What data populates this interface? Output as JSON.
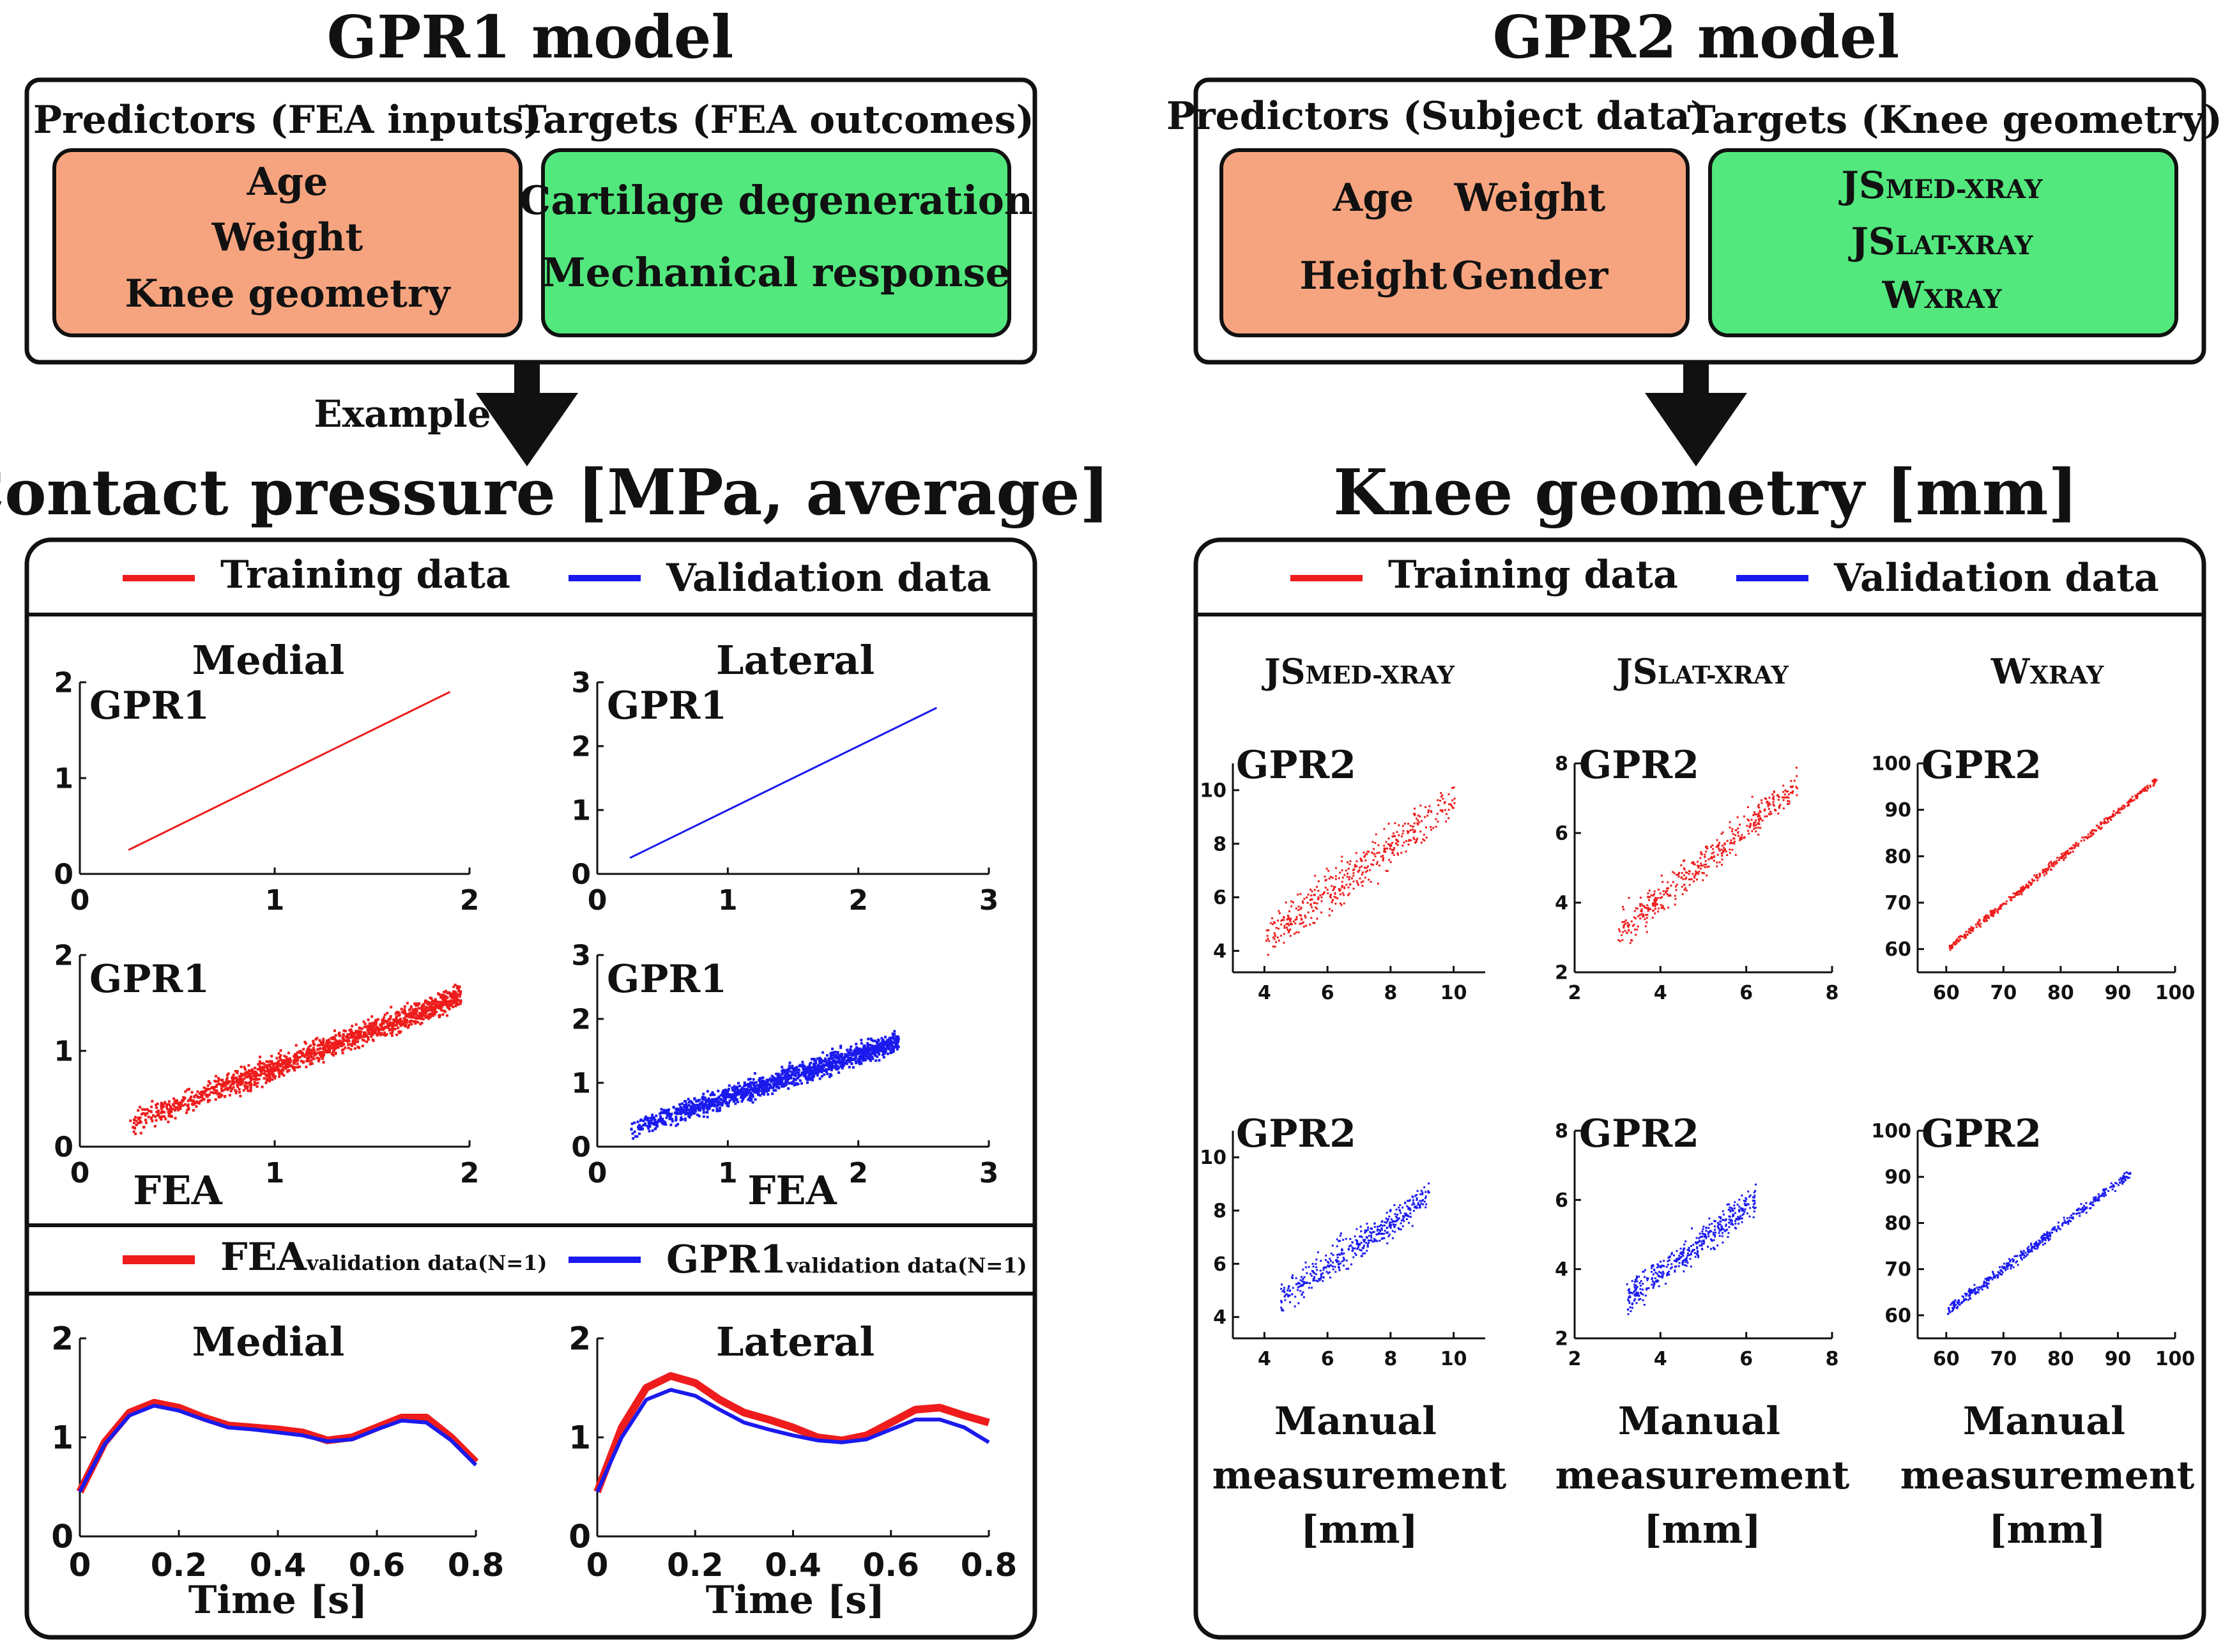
{
  "gpr1": {
    "title": "GPR1 model",
    "predictors_header": "Predictors (FEA inputs)",
    "targets_header": "Targets (FEA outcomes)",
    "predictors": [
      "Age",
      "Weight",
      "Knee geometry"
    ],
    "targets": [
      "Cartilage degeneration",
      "Mechanical response"
    ],
    "example_label": "Example",
    "section_title": "Contact pressure [MPa, average]",
    "legend_training": "Training data",
    "legend_validation": "Validation data",
    "medial_label": "Medial",
    "lateral_label": "Lateral",
    "gpr_label": "GPR1",
    "fea_label": "FEA",
    "ts_legend_fea": "FEA",
    "ts_legend_fea_sub": "validation data(N=1)",
    "ts_legend_gpr": "GPR1",
    "ts_legend_gpr_sub": "validation data(N=1)",
    "time_label": "Time [s]"
  },
  "gpr2": {
    "title": "GPR2 model",
    "predictors_header": "Predictors (Subject data)",
    "targets_header": "Targets (Knee geometry)",
    "predictors": [
      "Age",
      "Weight",
      "Height",
      "Gender"
    ],
    "targets": [
      {
        "main": "JS",
        "sub": "MED-XRAY"
      },
      {
        "main": "JS",
        "sub": "LAT-XRAY"
      },
      {
        "main": "W",
        "sub": "XRAY"
      }
    ],
    "section_title": "Knee geometry [mm]",
    "legend_training": "Training data",
    "legend_validation": "Validation data",
    "gpr_label": "GPR2",
    "manual_label": [
      "Manual",
      "measurement",
      "[mm]"
    ]
  },
  "colors": {
    "training": "#ee1c1c",
    "validation": "#1a1aee",
    "predictor_box": "#f6a47f",
    "target_box": "#52e87d"
  },
  "chart_data": [
    {
      "id": "gpr1-medial-training",
      "type": "scatter",
      "title": "Medial",
      "xlabel": "",
      "ylabel": "GPR1",
      "xlim": [
        0,
        2
      ],
      "ylim": [
        0,
        2
      ],
      "xticks": [
        0,
        1,
        2
      ],
      "yticks": [
        0,
        1,
        2
      ],
      "series": [
        {
          "name": "Training data",
          "line": [
            [
              0.25,
              0.25
            ],
            [
              1.9,
              1.9
            ]
          ]
        }
      ]
    },
    {
      "id": "gpr1-lateral-validation",
      "type": "scatter",
      "title": "Lateral",
      "xlabel": "",
      "ylabel": "GPR1",
      "xlim": [
        0,
        3
      ],
      "ylim": [
        0,
        3
      ],
      "xticks": [
        0,
        1,
        2,
        3
      ],
      "yticks": [
        0,
        1,
        2,
        3
      ],
      "series": [
        {
          "name": "Validation data",
          "line": [
            [
              0.25,
              0.25
            ],
            [
              2.6,
              2.6
            ]
          ]
        }
      ]
    },
    {
      "id": "gpr1-medial-fea-training",
      "type": "scatter",
      "title": "",
      "xlabel": "FEA",
      "ylabel": "GPR1",
      "xlim": [
        0,
        2
      ],
      "ylim": [
        0,
        2
      ],
      "xticks": [
        0,
        1,
        2
      ],
      "yticks": [
        0,
        1,
        2
      ],
      "series": [
        {
          "name": "Training data",
          "cloud": {
            "x_range": [
              0.25,
              1.95
            ],
            "center_line": [
              [
                0.25,
                0.25
              ],
              [
                1.9,
                1.55
              ]
            ],
            "spread": 0.12
          }
        }
      ]
    },
    {
      "id": "gpr1-lateral-fea-validation",
      "type": "scatter",
      "title": "",
      "xlabel": "FEA",
      "ylabel": "GPR1",
      "xlim": [
        0,
        3
      ],
      "ylim": [
        0,
        3
      ],
      "xticks": [
        0,
        1,
        2,
        3
      ],
      "yticks": [
        0,
        1,
        2,
        3
      ],
      "series": [
        {
          "name": "Validation data",
          "cloud": {
            "x_range": [
              0.25,
              2.3
            ],
            "center_line": [
              [
                0.25,
                0.3
              ],
              [
                2.2,
                1.6
              ]
            ],
            "spread": 0.16
          }
        }
      ]
    },
    {
      "id": "medial-time-series",
      "type": "line",
      "title": "Medial",
      "xlabel": "Time [s]",
      "ylabel": "",
      "xlim": [
        0,
        0.8
      ],
      "ylim": [
        0,
        2
      ],
      "xticks": [
        "0",
        "0.2",
        "0.4",
        "0.6",
        "0.8"
      ],
      "yticks": [
        0,
        1,
        2
      ],
      "x": [
        0,
        0.05,
        0.1,
        0.15,
        0.2,
        0.25,
        0.3,
        0.35,
        0.4,
        0.45,
        0.5,
        0.55,
        0.6,
        0.65,
        0.7,
        0.75,
        0.8
      ],
      "series": [
        {
          "name": "FEA",
          "values": [
            0.45,
            0.95,
            1.25,
            1.35,
            1.3,
            1.2,
            1.12,
            1.1,
            1.08,
            1.05,
            0.97,
            1.0,
            1.1,
            1.2,
            1.2,
            1.0,
            0.75
          ]
        },
        {
          "name": "GPR1",
          "values": [
            0.45,
            0.93,
            1.22,
            1.32,
            1.27,
            1.18,
            1.1,
            1.08,
            1.05,
            1.02,
            0.96,
            0.98,
            1.08,
            1.17,
            1.15,
            0.97,
            0.72
          ]
        }
      ]
    },
    {
      "id": "lateral-time-series",
      "type": "line",
      "title": "Lateral",
      "xlabel": "Time [s]",
      "ylabel": "",
      "xlim": [
        0,
        0.8
      ],
      "ylim": [
        0,
        2
      ],
      "xticks": [
        "0",
        "0.2",
        "0.4",
        "0.6",
        "0.8"
      ],
      "yticks": [
        0,
        1,
        2
      ],
      "x": [
        0,
        0.05,
        0.1,
        0.15,
        0.2,
        0.25,
        0.3,
        0.35,
        0.4,
        0.45,
        0.5,
        0.55,
        0.6,
        0.65,
        0.7,
        0.75,
        0.8
      ],
      "series": [
        {
          "name": "FEA",
          "values": [
            0.45,
            1.1,
            1.5,
            1.62,
            1.55,
            1.38,
            1.25,
            1.18,
            1.1,
            1.0,
            0.97,
            1.02,
            1.15,
            1.28,
            1.3,
            1.22,
            1.15
          ]
        },
        {
          "name": "GPR1",
          "values": [
            0.45,
            1.0,
            1.38,
            1.48,
            1.42,
            1.28,
            1.15,
            1.08,
            1.02,
            0.97,
            0.95,
            0.98,
            1.08,
            1.18,
            1.18,
            1.1,
            0.95
          ]
        }
      ]
    },
    {
      "id": "js-med-training",
      "type": "scatter",
      "title": "JSMED-XRAY",
      "xlabel": "",
      "ylabel": "GPR2",
      "xlim": [
        3,
        11
      ],
      "ylim": [
        3.2,
        11
      ],
      "xticks": [
        4,
        6,
        8,
        10
      ],
      "yticks": [
        4,
        6,
        8,
        10
      ],
      "series": [
        {
          "name": "Training data",
          "cloud": {
            "x_range": [
              4,
              10
            ],
            "center_line": [
              [
                4,
                4.5
              ],
              [
                10,
                9.7
              ]
            ],
            "spread": 0.8
          }
        }
      ]
    },
    {
      "id": "js-lat-training",
      "type": "scatter",
      "title": "JSLAT-XRAY",
      "xlabel": "",
      "ylabel": "GPR2",
      "xlim": [
        2,
        8
      ],
      "ylim": [
        2,
        8
      ],
      "xticks": [
        2,
        4,
        6,
        8
      ],
      "yticks": [
        2,
        4,
        6,
        8
      ],
      "series": [
        {
          "name": "Training data",
          "cloud": {
            "x_range": [
              3,
              7.2
            ],
            "center_line": [
              [
                3,
                3.2
              ],
              [
                7,
                7.2
              ]
            ],
            "spread": 0.5
          }
        }
      ]
    },
    {
      "id": "w-xray-training",
      "type": "scatter",
      "title": "WXRAY",
      "xlabel": "",
      "ylabel": "GPR2",
      "xlim": [
        55,
        100
      ],
      "ylim": [
        55,
        100
      ],
      "xticks": [
        60,
        70,
        80,
        90,
        100
      ],
      "yticks": [
        60,
        70,
        80,
        90,
        100
      ],
      "series": [
        {
          "name": "Training data",
          "cloud": {
            "x_range": [
              60,
              97
            ],
            "center_line": [
              [
                60,
                60
              ],
              [
                97,
                97
              ]
            ],
            "spread": 0.8
          }
        }
      ]
    },
    {
      "id": "js-med-validation",
      "type": "scatter",
      "title": "",
      "xlabel": "Manual measurement [mm]",
      "ylabel": "GPR2",
      "xlim": [
        3,
        11
      ],
      "ylim": [
        3.2,
        11
      ],
      "xticks": [
        4,
        6,
        8,
        10
      ],
      "yticks": [
        4,
        6,
        8,
        10
      ],
      "series": [
        {
          "name": "Validation data",
          "cloud": {
            "x_range": [
              4.5,
              9.2
            ],
            "center_line": [
              [
                4.5,
                4.8
              ],
              [
                9.2,
                8.6
              ]
            ],
            "spread": 0.6
          }
        }
      ]
    },
    {
      "id": "js-lat-validation",
      "type": "scatter",
      "title": "",
      "xlabel": "Manual measurement [mm]",
      "ylabel": "GPR2",
      "xlim": [
        2,
        8
      ],
      "ylim": [
        2,
        8
      ],
      "xticks": [
        2,
        4,
        6,
        8
      ],
      "yticks": [
        2,
        4,
        6,
        8
      ],
      "series": [
        {
          "name": "Validation data",
          "cloud": {
            "x_range": [
              3.2,
              6.2
            ],
            "center_line": [
              [
                3.2,
                3.2
              ],
              [
                6.2,
                6.0
              ]
            ],
            "spread": 0.45
          }
        }
      ]
    },
    {
      "id": "w-xray-validation",
      "type": "scatter",
      "title": "",
      "xlabel": "Manual measurement [mm]",
      "ylabel": "GPR2",
      "xlim": [
        55,
        100
      ],
      "ylim": [
        55,
        100
      ],
      "xticks": [
        60,
        70,
        80,
        90,
        100
      ],
      "yticks": [
        60,
        70,
        80,
        90,
        100
      ],
      "series": [
        {
          "name": "Validation data",
          "cloud": {
            "x_range": [
              60,
              92
            ],
            "center_line": [
              [
                60,
                61
              ],
              [
                92,
                91
              ]
            ],
            "spread": 1.2
          }
        }
      ]
    }
  ]
}
